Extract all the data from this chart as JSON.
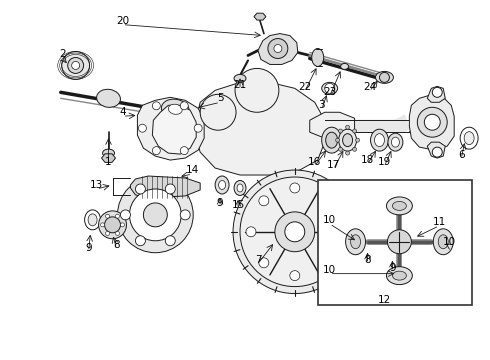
{
  "bg_color": "#ffffff",
  "fig_width": 4.9,
  "fig_height": 3.6,
  "dpi": 100,
  "lc": "#1a1a1a",
  "lw": 0.7,
  "fs": 7.5
}
